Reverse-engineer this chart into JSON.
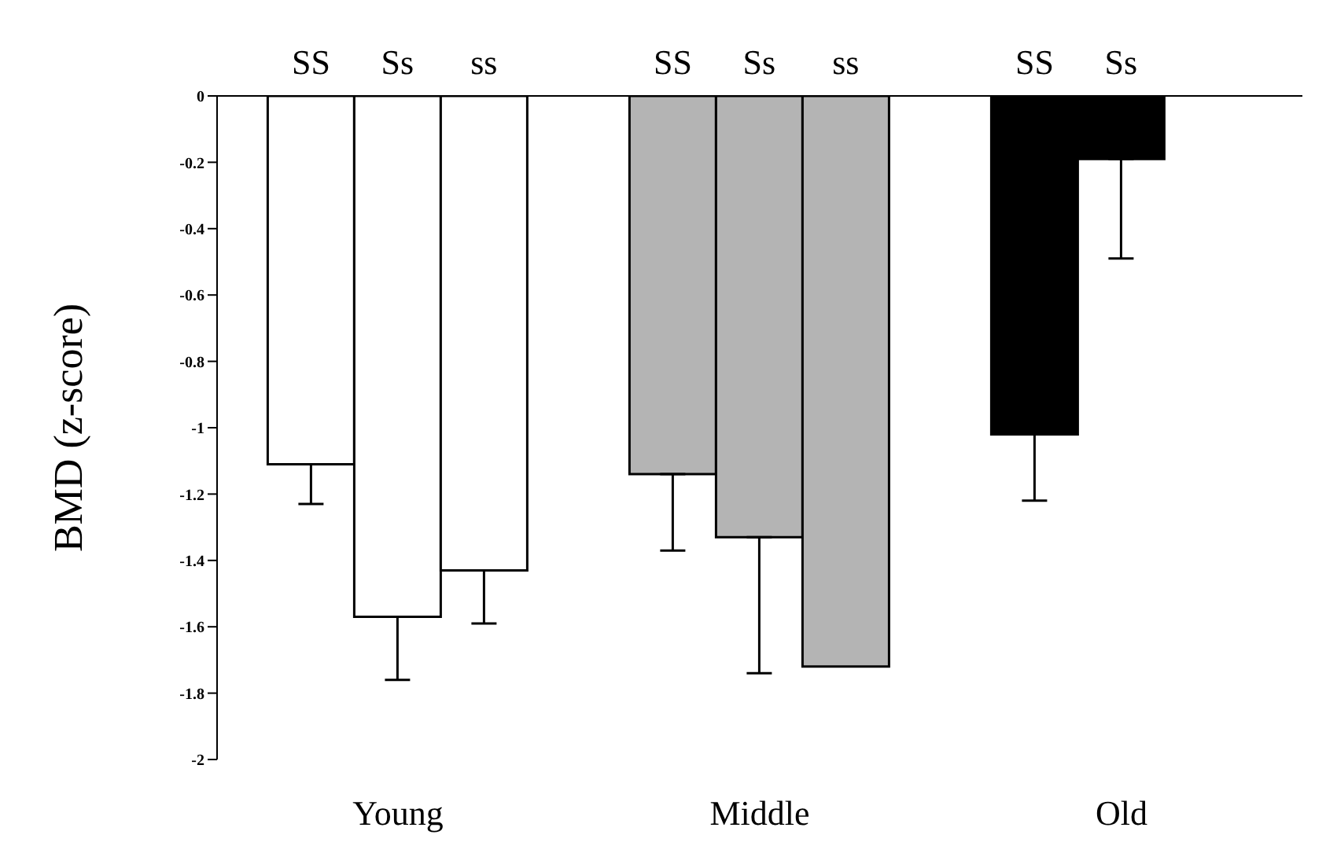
{
  "chart_data": {
    "type": "bar",
    "ylabel": "BMD (z-score)",
    "categories": [
      "Young",
      "Middle",
      "Old"
    ],
    "series": [
      {
        "name": "SS",
        "colors": [
          "#ffffff",
          "#b4b4b4",
          "#000000"
        ],
        "values": [
          -1.11,
          -1.14,
          -1.02
        ],
        "errors": [
          [
            -1.23,
            -1.11
          ],
          [
            -1.37,
            -1.14
          ],
          [
            -1.22,
            -1.02
          ]
        ]
      },
      {
        "name": "Ss",
        "colors": [
          "#ffffff",
          "#b4b4b4",
          "#000000"
        ],
        "values": [
          -1.57,
          -1.33,
          -0.19
        ],
        "errors": [
          [
            -1.76,
            -1.57
          ],
          [
            -1.74,
            -1.33
          ],
          [
            -0.49,
            -0.19
          ]
        ]
      },
      {
        "name": "ss",
        "colors": [
          "#ffffff",
          "#b4b4b4",
          "#000000"
        ],
        "values": [
          -1.43,
          -1.72,
          null
        ],
        "errors": [
          [
            -1.59,
            -1.43
          ],
          null,
          null
        ]
      }
    ],
    "ylim": [
      -2,
      0
    ],
    "yticks": [
      0,
      -0.2,
      -0.4,
      -0.6,
      -0.8,
      -1,
      -1.2,
      -1.4,
      -1.6,
      -1.8,
      -2
    ]
  }
}
